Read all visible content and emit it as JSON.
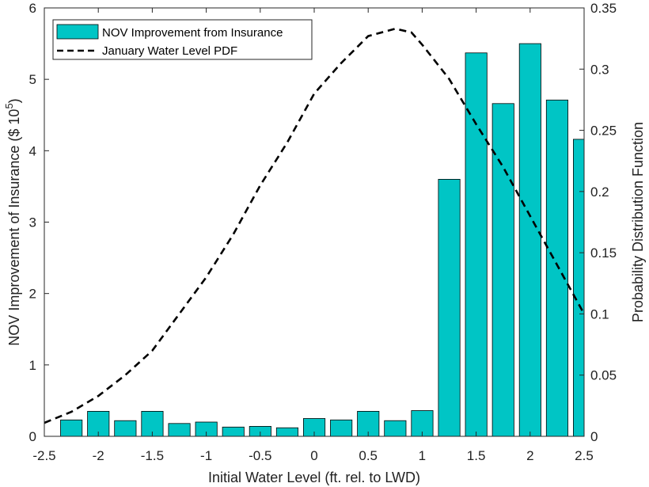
{
  "chart_data": {
    "type": "bar",
    "title": "",
    "xlabel": "Initial Water Level (ft. rel. to LWD)",
    "ylabel_left": "NOV Improvement of Insurance ($ 10",
    "ylabel_left_exponent": "5",
    "ylabel_left_suffix": ")",
    "ylabel_right": "Probability Distribution Function",
    "xlim": [
      -2.5,
      2.5
    ],
    "ylim_left": [
      0,
      6
    ],
    "ylim_right": [
      0,
      0.35
    ],
    "xticks": [
      "-2.5",
      "-2",
      "-1.5",
      "-1",
      "-0.5",
      "0",
      "0.5",
      "1",
      "1.5",
      "2",
      "2.5"
    ],
    "xtick_values": [
      -2.5,
      -2,
      -1.5,
      -1,
      -0.5,
      0,
      0.5,
      1,
      1.5,
      2,
      2.5
    ],
    "yticks_left": [
      "0",
      "1",
      "2",
      "3",
      "4",
      "5",
      "6"
    ],
    "ytick_values_left": [
      0,
      1,
      2,
      3,
      4,
      5,
      6
    ],
    "yticks_right": [
      "0",
      "0.05",
      "0.1",
      "0.15",
      "0.2",
      "0.25",
      "0.3",
      "0.35"
    ],
    "ytick_values_right": [
      0,
      0.05,
      0.1,
      0.15,
      0.2,
      0.25,
      0.3,
      0.35
    ],
    "bar_color": "#00C5C5",
    "series": [
      {
        "name": "NOV Improvement from Insurance",
        "type": "bar",
        "axis": "left",
        "x": [
          -2.25,
          -2.0,
          -1.75,
          -1.5,
          -1.25,
          -1.0,
          -0.75,
          -0.5,
          -0.25,
          0.0,
          0.25,
          0.5,
          0.75,
          1.0,
          1.25,
          1.5,
          1.75,
          2.0,
          2.25,
          2.5
        ],
        "values": [
          0.23,
          0.35,
          0.22,
          0.35,
          0.18,
          0.2,
          0.13,
          0.14,
          0.12,
          0.25,
          0.23,
          0.35,
          0.22,
          0.36,
          3.6,
          5.37,
          4.66,
          5.5,
          4.71,
          4.16
        ]
      },
      {
        "name": "January Water Level PDF",
        "type": "line",
        "style": "dashed",
        "axis": "right",
        "x": [
          -2.5,
          -2.25,
          -2.0,
          -1.75,
          -1.5,
          -1.25,
          -1.0,
          -0.75,
          -0.5,
          -0.25,
          0.0,
          0.25,
          0.5,
          0.75,
          0.9,
          1.0,
          1.25,
          1.5,
          1.75,
          2.0,
          2.25,
          2.5
        ],
        "values": [
          0.011,
          0.02,
          0.033,
          0.05,
          0.07,
          0.1,
          0.13,
          0.165,
          0.205,
          0.24,
          0.28,
          0.305,
          0.327,
          0.333,
          0.33,
          0.32,
          0.292,
          0.255,
          0.22,
          0.18,
          0.14,
          0.1
        ]
      }
    ],
    "legend_position": "top-left"
  }
}
